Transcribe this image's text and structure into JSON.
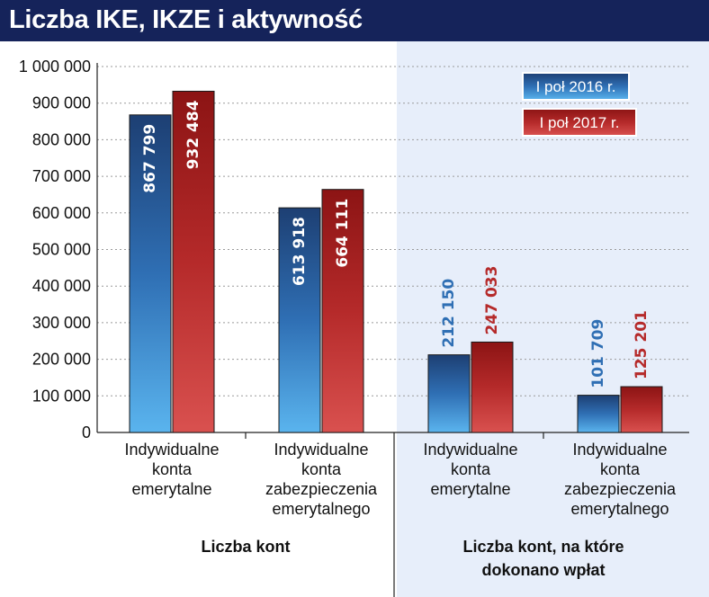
{
  "title": "Liczba IKE, IKZE i aktywność",
  "colors": {
    "header": "#15235a",
    "series_2016": "#2f6fb4",
    "series_2017": "#b52a2a",
    "highlight_bg": "#e7eefa"
  },
  "chart_data": {
    "type": "bar",
    "title": "Liczba IKE, IKZE i aktywność",
    "ylim": [
      0,
      1000000
    ],
    "yticks": [
      "0",
      "100 000",
      "200 000",
      "300 000",
      "400 000",
      "500 000",
      "600 000",
      "700 000",
      "800 000",
      "900 000",
      "1 000 000"
    ],
    "grid": true,
    "legend_position": "top-right",
    "categories": [
      [
        "Indywidualne",
        "konta",
        "emerytalne"
      ],
      [
        "Indywidualne",
        "konta",
        "zabezpieczenia",
        "emerytalnego"
      ],
      [
        "Indywidualne",
        "konta",
        "emerytalne"
      ],
      [
        "Indywidualne",
        "konta",
        "zabezpieczenia",
        "emerytalnego"
      ]
    ],
    "groups": [
      [
        "Liczba kont"
      ],
      [
        "Liczba kont, na które",
        "dokonano wpłat"
      ]
    ],
    "series": [
      {
        "name": "I poł 2016 r.",
        "values": [
          867799,
          613918,
          212150,
          101709
        ],
        "labels": [
          "867 799",
          "613 918",
          "212 150",
          "101 709"
        ]
      },
      {
        "name": "I poł 2017 r.",
        "values": [
          932484,
          664111,
          247033,
          125201
        ],
        "labels": [
          "932 484",
          "664 111",
          "247 033",
          "125 201"
        ]
      }
    ]
  }
}
